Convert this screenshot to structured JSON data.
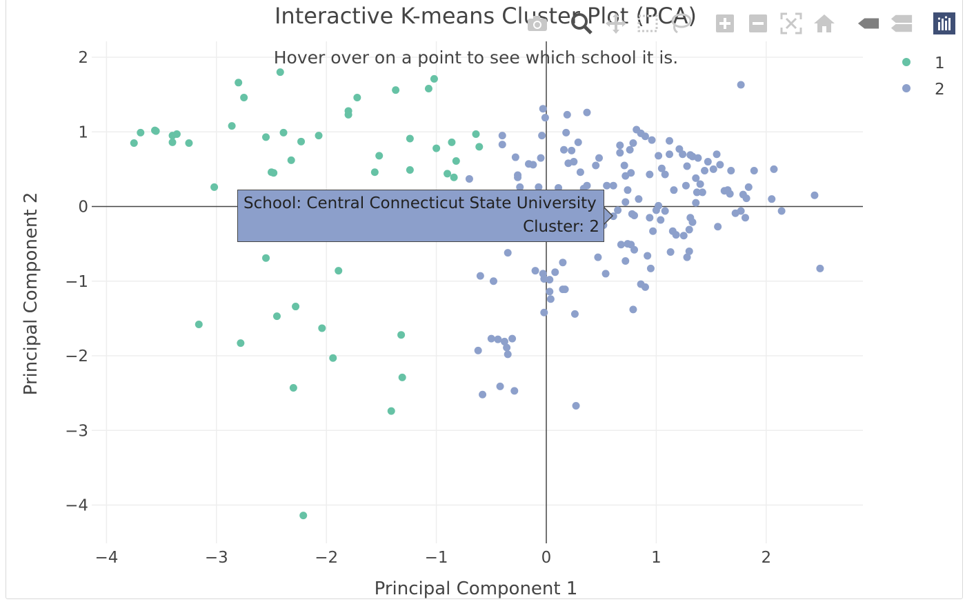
{
  "chart_data": {
    "type": "scatter",
    "title": "Interactive K-means Cluster Plot (PCA)",
    "subtitle": "Hover over on a point to see which school it is.",
    "xlabel": "Principal Component 1",
    "ylabel": "Principal Component 2",
    "xlim": [
      -4.1,
      2.9
    ],
    "ylim": [
      -4.5,
      2.2
    ],
    "xticks": [
      -4,
      -3,
      -2,
      -1,
      0,
      1,
      2
    ],
    "xtick_labels": [
      "−4",
      "−3",
      "−2",
      "−1",
      "0",
      "1",
      "2"
    ],
    "yticks": [
      2,
      1,
      0,
      -1,
      -2,
      -3,
      -4
    ],
    "ytick_labels": [
      "2",
      "1",
      "0",
      "−1",
      "−2",
      "−3",
      "−4"
    ],
    "grid": true,
    "zero_lines": true,
    "legend_position": "top-right",
    "series": [
      {
        "name": "1",
        "color": "#66c2a5",
        "points": [
          [
            -3.75,
            0.85
          ],
          [
            -3.69,
            0.99
          ],
          [
            -3.56,
            1.02
          ],
          [
            -3.55,
            1.01
          ],
          [
            -3.4,
            0.95
          ],
          [
            -3.4,
            0.86
          ],
          [
            -3.36,
            0.97
          ],
          [
            -3.25,
            0.85
          ],
          [
            -3.02,
            0.26
          ],
          [
            -2.86,
            1.08
          ],
          [
            -2.8,
            1.66
          ],
          [
            -2.75,
            1.46
          ],
          [
            -2.55,
            0.93
          ],
          [
            -2.5,
            0.46
          ],
          [
            -2.48,
            0.45
          ],
          [
            -2.42,
            1.8
          ],
          [
            -2.39,
            0.99
          ],
          [
            -2.32,
            0.62
          ],
          [
            -2.23,
            0.87
          ],
          [
            -2.07,
            0.95
          ],
          [
            -1.8,
            1.28
          ],
          [
            -1.8,
            1.23
          ],
          [
            -1.72,
            1.46
          ],
          [
            -1.56,
            0.46
          ],
          [
            -1.52,
            0.68
          ],
          [
            -1.37,
            1.56
          ],
          [
            -1.24,
            0.91
          ],
          [
            -1.24,
            0.49
          ],
          [
            -1.07,
            1.58
          ],
          [
            -1.02,
            1.71
          ],
          [
            -1.0,
            0.78
          ],
          [
            -0.9,
            0.44
          ],
          [
            -0.86,
            0.86
          ],
          [
            -0.82,
            0.61
          ],
          [
            -0.84,
            0.39
          ],
          [
            -0.64,
            0.97
          ],
          [
            -0.61,
            0.8
          ],
          [
            -2.55,
            -0.69
          ],
          [
            -1.89,
            -0.86
          ],
          [
            -2.28,
            -1.34
          ],
          [
            -2.45,
            -1.47
          ],
          [
            -3.16,
            -1.58
          ],
          [
            -2.04,
            -1.63
          ],
          [
            -1.32,
            -1.72
          ],
          [
            -2.78,
            -1.83
          ],
          [
            -1.94,
            -2.03
          ],
          [
            -1.31,
            -2.29
          ],
          [
            -2.3,
            -2.43
          ],
          [
            -1.41,
            -2.74
          ],
          [
            -2.21,
            -4.14
          ]
        ]
      },
      {
        "name": "2",
        "color": "#8da0cb",
        "points": [
          [
            -0.7,
            0.37
          ],
          [
            -0.4,
            0.95
          ],
          [
            -0.4,
            0.83
          ],
          [
            -0.28,
            0.66
          ],
          [
            -0.26,
            0.42
          ],
          [
            -0.26,
            0.39
          ],
          [
            -0.24,
            0.26
          ],
          [
            -0.16,
            0.57
          ],
          [
            -0.12,
            0.56
          ],
          [
            -0.07,
            0.26
          ],
          [
            -0.05,
            0.65
          ],
          [
            -0.04,
            0.95
          ],
          [
            -0.03,
            1.31
          ],
          [
            -0.01,
            1.19
          ],
          [
            0.11,
            0.25
          ],
          [
            0.16,
            0.76
          ],
          [
            0.18,
            0.99
          ],
          [
            0.19,
            1.23
          ],
          [
            0.2,
            0.58
          ],
          [
            0.23,
            0.75
          ],
          [
            0.25,
            0.6
          ],
          [
            0.29,
            0.86
          ],
          [
            0.31,
            0.46
          ],
          [
            0.34,
            0.24
          ],
          [
            0.37,
            0.28
          ],
          [
            0.37,
            1.26
          ],
          [
            0.45,
            0.55
          ],
          [
            0.48,
            0.65
          ],
          [
            0.55,
            0.28
          ],
          [
            0.61,
            0.28
          ],
          [
            0.67,
            0.82
          ],
          [
            0.67,
            0.72
          ],
          [
            0.71,
            0.55
          ],
          [
            0.72,
            0.41
          ],
          [
            0.74,
            0.22
          ],
          [
            0.76,
            0.76
          ],
          [
            0.77,
            0.45
          ],
          [
            0.79,
            0.85
          ],
          [
            0.82,
            1.03
          ],
          [
            0.86,
            0.98
          ],
          [
            0.9,
            0.94
          ],
          [
            0.94,
            0.43
          ],
          [
            0.96,
            0.89
          ],
          [
            1.02,
            0.68
          ],
          [
            1.05,
            0.51
          ],
          [
            1.08,
            0.43
          ],
          [
            1.12,
            0.7
          ],
          [
            1.12,
            0.88
          ],
          [
            1.16,
            0.22
          ],
          [
            1.21,
            0.77
          ],
          [
            1.24,
            0.7
          ],
          [
            1.27,
            0.28
          ],
          [
            1.28,
            0.54
          ],
          [
            1.31,
            0.69
          ],
          [
            1.33,
            0.67
          ],
          [
            1.36,
            0.38
          ],
          [
            1.37,
            0.19
          ],
          [
            1.38,
            0.65
          ],
          [
            1.4,
            0.3
          ],
          [
            1.44,
            0.48
          ],
          [
            1.47,
            0.6
          ],
          [
            1.52,
            0.5
          ],
          [
            1.55,
            0.7
          ],
          [
            1.58,
            0.56
          ],
          [
            1.62,
            0.21
          ],
          [
            1.65,
            0.22
          ],
          [
            1.67,
            0.17
          ],
          [
            1.68,
            0.48
          ],
          [
            1.77,
            1.63
          ],
          [
            1.79,
            0.16
          ],
          [
            1.82,
            0.11
          ],
          [
            1.84,
            0.26
          ],
          [
            1.89,
            0.48
          ],
          [
            2.05,
            0.1
          ],
          [
            2.07,
            0.5
          ],
          [
            2.44,
            0.15
          ],
          [
            -0.95,
            -0.25
          ],
          [
            -0.72,
            -0.16
          ],
          [
            -0.28,
            -0.17
          ],
          [
            0.26,
            -0.28
          ],
          [
            0.49,
            -0.18
          ],
          [
            0.52,
            -0.25
          ],
          [
            0.61,
            -0.13
          ],
          [
            0.65,
            -0.05
          ],
          [
            0.72,
            0.06
          ],
          [
            0.78,
            -0.1
          ],
          [
            0.8,
            -0.12
          ],
          [
            0.84,
            0.1
          ],
          [
            0.94,
            -0.15
          ],
          [
            0.97,
            -0.33
          ],
          [
            1.0,
            -0.05
          ],
          [
            1.02,
            0.01
          ],
          [
            1.04,
            -0.18
          ],
          [
            1.08,
            -0.06
          ],
          [
            1.15,
            -0.33
          ],
          [
            1.18,
            -0.38
          ],
          [
            1.25,
            -0.39
          ],
          [
            1.3,
            -0.31
          ],
          [
            1.31,
            -0.15
          ],
          [
            1.33,
            -0.21
          ],
          [
            1.36,
            0.05
          ],
          [
            1.42,
            0.19
          ],
          [
            1.56,
            -0.27
          ],
          [
            1.72,
            -0.09
          ],
          [
            1.77,
            -0.06
          ],
          [
            1.81,
            -0.15
          ],
          [
            2.14,
            -0.06
          ],
          [
            0.68,
            -0.51
          ],
          [
            0.74,
            -0.5
          ],
          [
            0.77,
            -0.51
          ],
          [
            0.8,
            -0.58
          ],
          [
            0.92,
            -0.66
          ],
          [
            0.95,
            -0.83
          ],
          [
            0.72,
            -0.73
          ],
          [
            1.13,
            -0.61
          ],
          [
            1.28,
            -0.68
          ],
          [
            1.3,
            -0.6
          ],
          [
            0.47,
            -0.68
          ],
          [
            0.54,
            -0.9
          ],
          [
            0.15,
            -0.75
          ],
          [
            -0.35,
            -0.62
          ],
          [
            -0.1,
            -0.86
          ],
          [
            -0.03,
            -0.9
          ],
          [
            -0.02,
            -0.97
          ],
          [
            0.03,
            -0.98
          ],
          [
            0.08,
            -0.88
          ],
          [
            0.03,
            -1.14
          ],
          [
            0.04,
            -1.24
          ],
          [
            0.15,
            -1.11
          ],
          [
            0.17,
            -1.11
          ],
          [
            -0.6,
            -0.93
          ],
          [
            -0.48,
            -1.0
          ],
          [
            0.86,
            -1.04
          ],
          [
            0.9,
            -1.08
          ],
          [
            -0.02,
            -1.42
          ],
          [
            0.79,
            -1.38
          ],
          [
            0.26,
            -1.44
          ],
          [
            2.49,
            -0.83
          ],
          [
            -0.5,
            -1.77
          ],
          [
            -0.44,
            -1.78
          ],
          [
            -0.38,
            -1.81
          ],
          [
            -0.31,
            -1.77
          ],
          [
            -0.36,
            -1.89
          ],
          [
            -0.35,
            -1.98
          ],
          [
            -0.62,
            -1.93
          ],
          [
            -0.42,
            -2.41
          ],
          [
            -0.58,
            -2.52
          ],
          [
            -0.29,
            -2.47
          ],
          [
            0.27,
            -2.67
          ]
        ]
      }
    ],
    "legend": [
      "1",
      "2"
    ]
  },
  "tooltip": {
    "line1": "School: Central Connecticut State University",
    "line2": "Cluster: 2",
    "color": "#8c9fcb",
    "point": [
      0.64,
      -0.09
    ]
  },
  "modebar": {
    "buttons": [
      {
        "icon": "camera-icon"
      },
      {
        "icon": "zoom-icon"
      },
      {
        "icon": "pan-icon"
      },
      {
        "icon": "box-select-icon"
      },
      {
        "icon": "lasso-icon"
      },
      {
        "icon": "zoom-in-icon"
      },
      {
        "icon": "zoom-out-icon"
      },
      {
        "icon": "autoscale-icon"
      },
      {
        "icon": "reset-axes-icon"
      },
      {
        "icon": "spike-lines-icon"
      },
      {
        "icon": "compare-hover-icon"
      },
      {
        "icon": "plotly-logo-icon"
      }
    ]
  }
}
